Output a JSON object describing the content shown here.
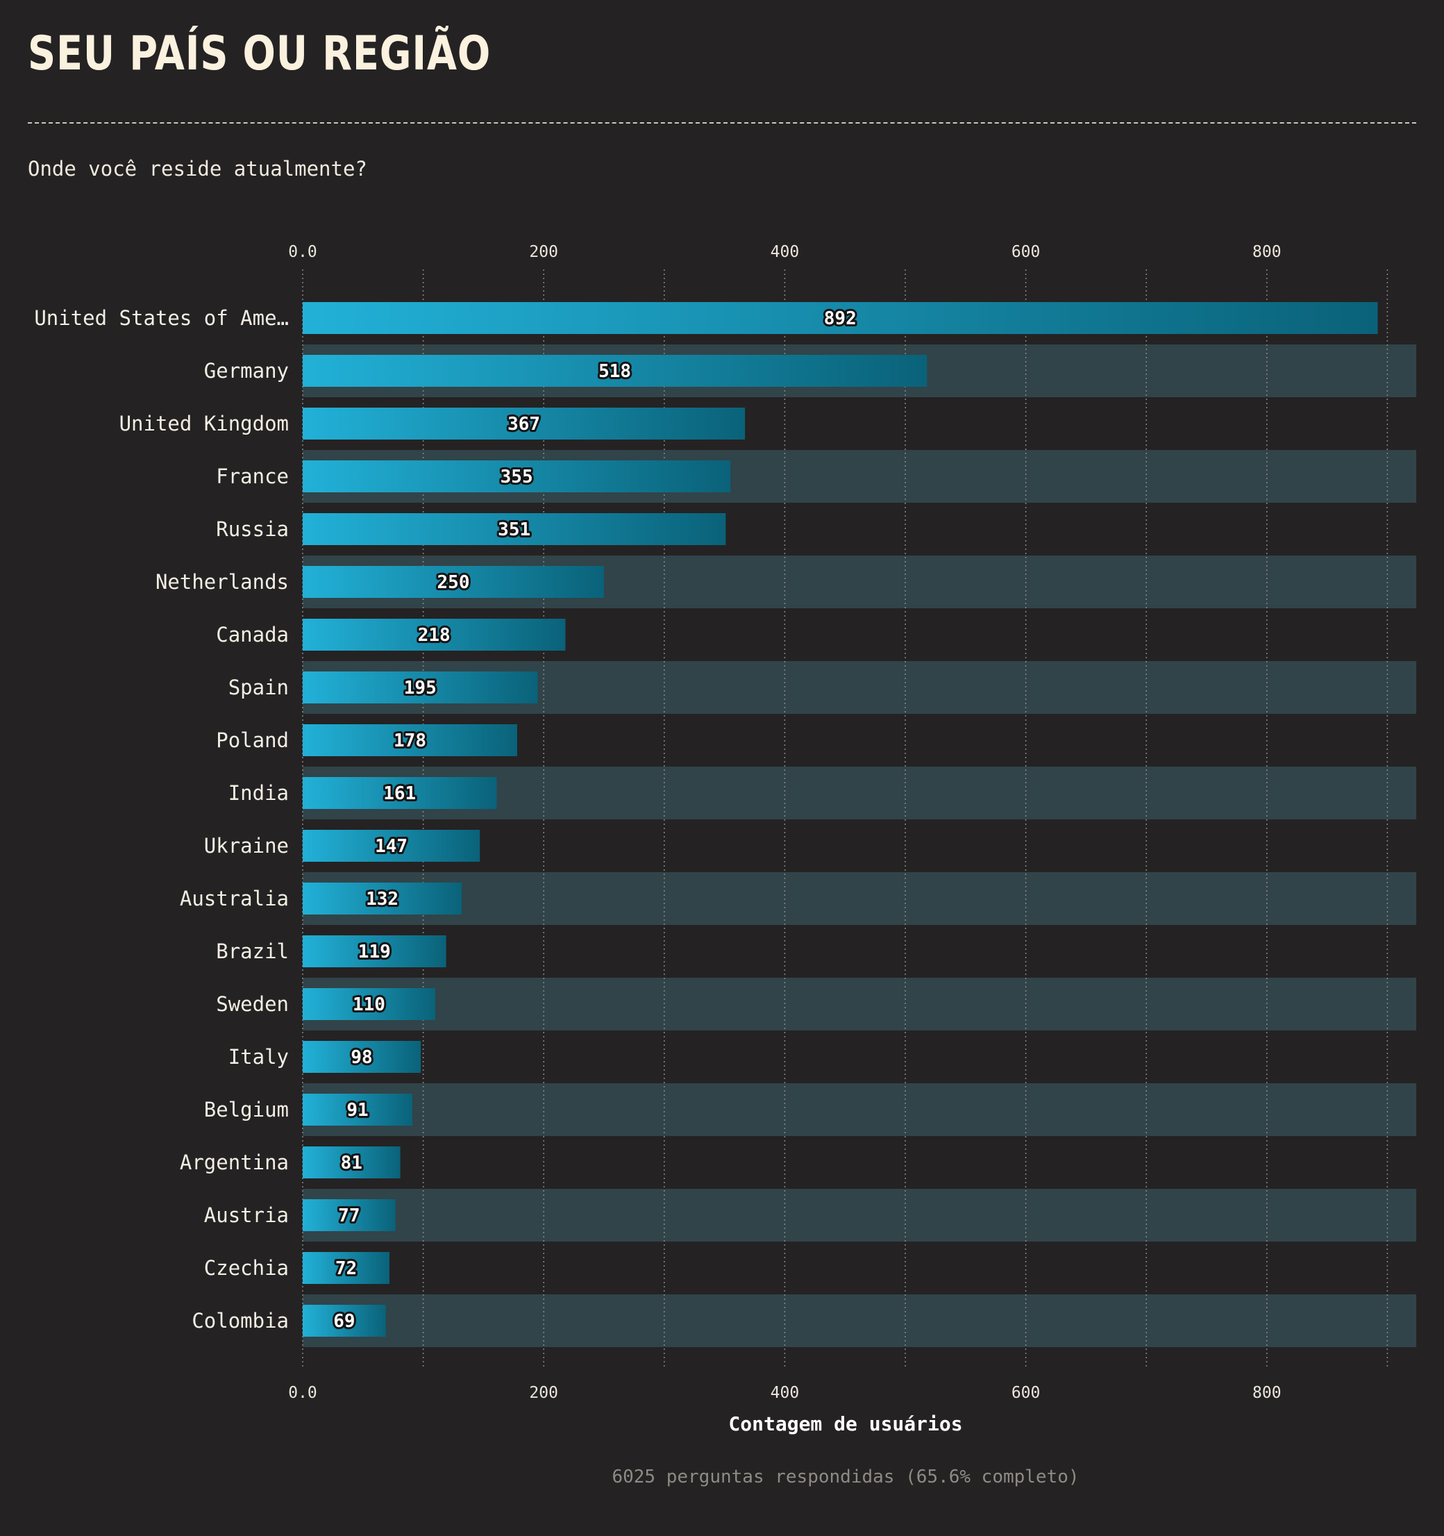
{
  "header": {
    "title": "SEU PAÍS OU REGIÃO",
    "subtitle": "Onde você reside atualmente?"
  },
  "footer": {
    "note": "6025 perguntas respondidas (65.6% completo)"
  },
  "colors": {
    "background": "#252223",
    "band": "#314449",
    "bar_start": "#22b1d8",
    "bar_end": "#0a6279",
    "grid": "#8a8886"
  },
  "chart_data": {
    "type": "bar",
    "orientation": "horizontal",
    "categories": [
      "United States of Ame…",
      "Germany",
      "United Kingdom",
      "France",
      "Russia",
      "Netherlands",
      "Canada",
      "Spain",
      "Poland",
      "India",
      "Ukraine",
      "Australia",
      "Brazil",
      "Sweden",
      "Italy",
      "Belgium",
      "Argentina",
      "Austria",
      "Czechia",
      "Colombia"
    ],
    "values": [
      892,
      518,
      367,
      355,
      351,
      250,
      218,
      195,
      178,
      161,
      147,
      132,
      119,
      110,
      98,
      91,
      81,
      77,
      72,
      69
    ],
    "xlabel": "Contagem de usuários",
    "xlim": [
      0,
      925
    ],
    "major_ticks": [
      0,
      200,
      400,
      600,
      800
    ],
    "tick_labels": [
      "0.0",
      "200",
      "400",
      "600",
      "800"
    ],
    "minor_gridlines": [
      100,
      300,
      500,
      700,
      900
    ],
    "grid": true,
    "legend": "none"
  }
}
